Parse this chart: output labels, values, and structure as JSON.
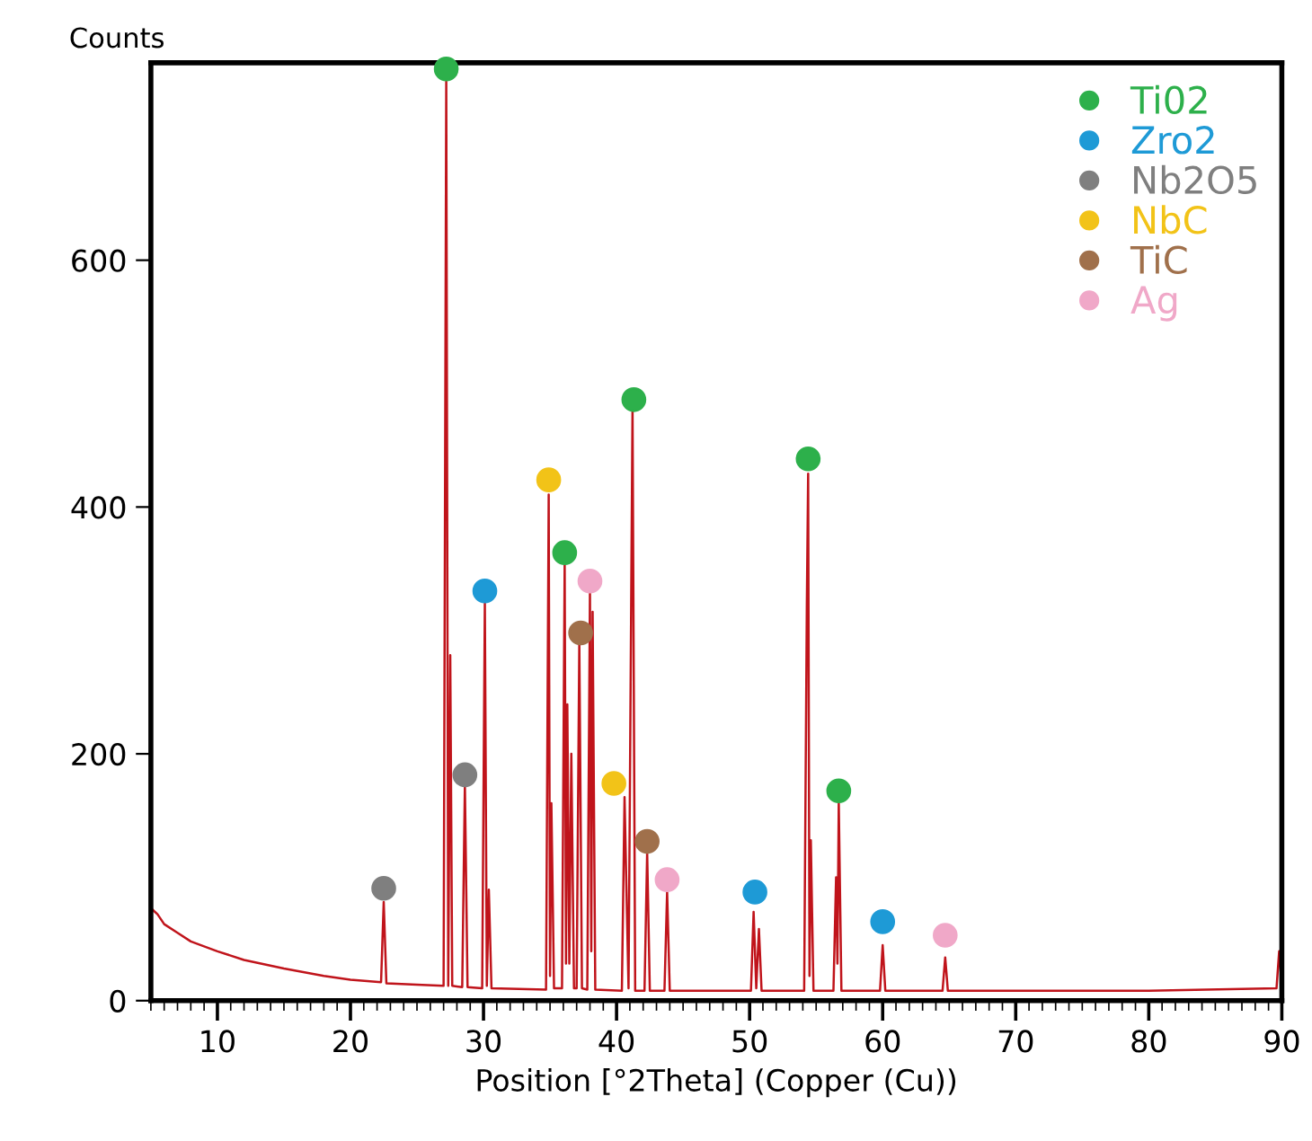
{
  "chart_data": {
    "type": "line",
    "ylabel": "Counts",
    "xlabel": "Position [°2Theta] (Copper (Cu))",
    "xlim": [
      5,
      90
    ],
    "xticks": [
      10,
      20,
      30,
      40,
      50,
      60,
      70,
      80,
      90
    ],
    "ylim": [
      0,
      760
    ],
    "yticks": [
      0,
      200,
      400,
      600
    ],
    "grid": false,
    "legend": "top right",
    "series": [
      {
        "color": "#c0141b",
        "marker": "none",
        "line_style": "solid",
        "x": [
          5,
          5.5,
          6,
          7,
          8,
          10,
          12,
          15,
          18,
          20,
          22.3,
          22.5,
          22.7,
          25,
          27.0,
          27.2,
          27.35,
          27.5,
          27.65,
          28.4,
          28.6,
          28.8,
          29.9,
          30.1,
          30.25,
          30.4,
          30.6,
          34.7,
          34.9,
          35.0,
          35.1,
          35.3,
          35.9,
          36.1,
          36.2,
          36.3,
          36.45,
          36.6,
          36.8,
          37.0,
          37.2,
          37.4,
          37.8,
          38.0,
          38.1,
          38.2,
          38.4,
          40.4,
          40.6,
          40.9,
          41.2,
          41.4,
          42.1,
          42.3,
          42.5,
          43.6,
          43.8,
          44.0,
          46,
          50.1,
          50.3,
          50.5,
          50.7,
          50.9,
          54.1,
          54.3,
          54.4,
          54.5,
          54.6,
          54.8,
          56.3,
          56.5,
          56.6,
          56.7,
          56.9,
          59.8,
          60.0,
          60.2,
          64.5,
          64.7,
          64.9,
          70,
          80,
          89.6,
          89.8,
          90
        ],
        "values": [
          75,
          70,
          62,
          55,
          48,
          40,
          33,
          26,
          20,
          17,
          15,
          80,
          14,
          13,
          12,
          745,
          12,
          280,
          12,
          11,
          175,
          11,
          10,
          322,
          12,
          90,
          10,
          9,
          410,
          20,
          160,
          10,
          10,
          355,
          30,
          240,
          30,
          200,
          10,
          10,
          290,
          10,
          9,
          330,
          40,
          315,
          9,
          8,
          165,
          10,
          480,
          8,
          8,
          120,
          8,
          8,
          88,
          8,
          8,
          8,
          72,
          10,
          58,
          8,
          8,
          320,
          427,
          20,
          130,
          8,
          8,
          100,
          30,
          160,
          8,
          8,
          45,
          8,
          8,
          35,
          8,
          8,
          8,
          10,
          40,
          12
        ]
      },
      {
        "type": "scatter",
        "name": "Ti02",
        "color": "#2db04b",
        "marker": "circle",
        "x": [
          27.2,
          36.1,
          41.3,
          54.4,
          56.7
        ],
        "values": [
          755,
          363,
          487,
          439,
          170
        ]
      },
      {
        "type": "scatter",
        "name": "Zro2",
        "color": "#1e9ad6",
        "marker": "circle",
        "x": [
          30.1,
          50.4,
          60.0
        ],
        "values": [
          332,
          88,
          64
        ]
      },
      {
        "type": "scatter",
        "name": "Nb2O5",
        "color": "#7f7f7f",
        "marker": "circle",
        "x": [
          22.5,
          28.6
        ],
        "values": [
          91,
          183
        ]
      },
      {
        "type": "scatter",
        "name": "NbC",
        "color": "#f2c318",
        "marker": "circle",
        "x": [
          34.9,
          39.8
        ],
        "values": [
          422,
          176
        ]
      },
      {
        "type": "scatter",
        "name": "TiC",
        "color": "#a0704b",
        "marker": "circle",
        "x": [
          37.3,
          42.3
        ],
        "values": [
          298,
          129
        ]
      },
      {
        "type": "scatter",
        "name": "Ag",
        "color": "#f0a8c8",
        "marker": "circle",
        "x": [
          38.0,
          43.8,
          64.7
        ],
        "values": [
          340,
          98,
          53
        ]
      }
    ]
  }
}
